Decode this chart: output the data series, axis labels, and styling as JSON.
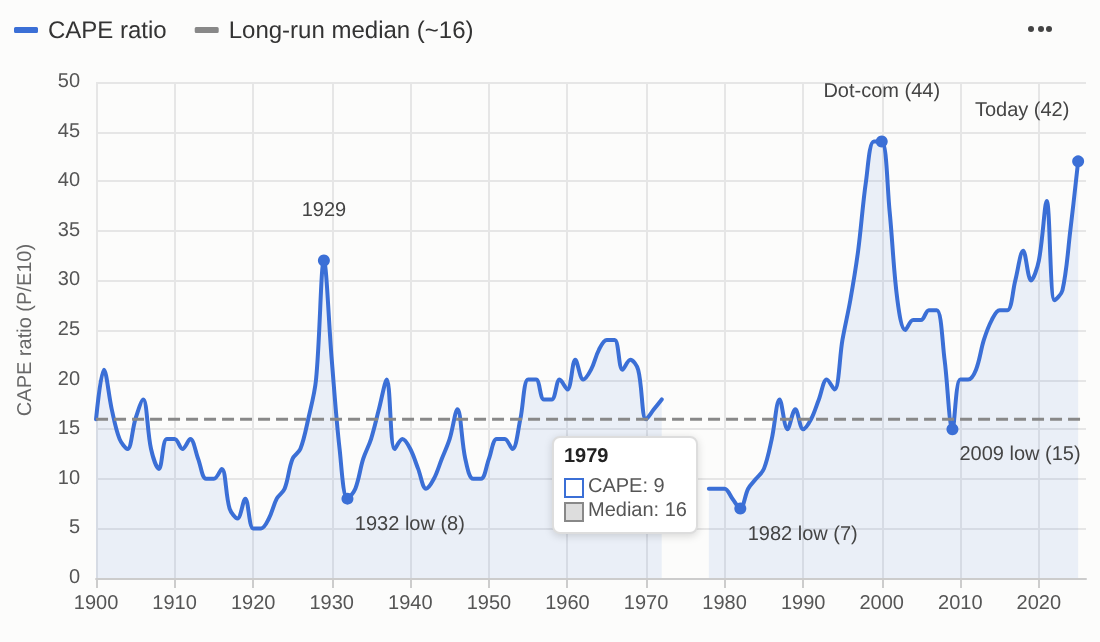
{
  "chart_data": {
    "type": "area",
    "ylabel": "CAPE ratio (P/E10)",
    "x": [
      1900,
      1901,
      1902,
      1903,
      1904,
      1905,
      1906,
      1907,
      1908,
      1909,
      1910,
      1911,
      1912,
      1913,
      1914,
      1915,
      1916,
      1917,
      1918,
      1919,
      1920,
      1921,
      1922,
      1923,
      1924,
      1925,
      1926,
      1927,
      1928,
      1929,
      1930,
      1931,
      1932,
      1933,
      1934,
      1935,
      1936,
      1937,
      1938,
      1939,
      1940,
      1941,
      1942,
      1943,
      1944,
      1945,
      1946,
      1947,
      1948,
      1949,
      1950,
      1951,
      1952,
      1953,
      1954,
      1955,
      1956,
      1957,
      1958,
      1959,
      1960,
      1961,
      1962,
      1963,
      1964,
      1965,
      1966,
      1967,
      1968,
      1969,
      1970,
      1971,
      1972,
      1973,
      1974,
      1975,
      1976,
      1977,
      1978,
      1979,
      1980,
      1981,
      1982,
      1983,
      1984,
      1985,
      1986,
      1987,
      1988,
      1989,
      1990,
      1991,
      1992,
      1993,
      1994,
      1995,
      1996,
      1997,
      1998,
      1999,
      2000,
      2001,
      2002,
      2003,
      2004,
      2005,
      2006,
      2007,
      2008,
      2009,
      2010,
      2011,
      2012,
      2013,
      2014,
      2015,
      2016,
      2017,
      2018,
      2019,
      2020,
      2021,
      2022,
      2023,
      2024,
      2025
    ],
    "series": [
      {
        "name": "CAPE ratio",
        "color": "#3b6fd6",
        "values": [
          16,
          21,
          17,
          14,
          13,
          16,
          18,
          13,
          11,
          14,
          14,
          13,
          14,
          12,
          10,
          10,
          11,
          7,
          6,
          8,
          5,
          5,
          6,
          8,
          9,
          12,
          13,
          16,
          20,
          32,
          22,
          13,
          8,
          9,
          12,
          14,
          17,
          20,
          13,
          14,
          13,
          11,
          9,
          10,
          12,
          14,
          17,
          12,
          10,
          10,
          12,
          14,
          14,
          13,
          16,
          20,
          20,
          18,
          18,
          20,
          19,
          22,
          20,
          21,
          23,
          24,
          24,
          21,
          22,
          21,
          16,
          17,
          18,
          null,
          null,
          null,
          null,
          null,
          9,
          9,
          9,
          8,
          7,
          9,
          10,
          11,
          14,
          18,
          15,
          17,
          15,
          16,
          18,
          20,
          19,
          24,
          28,
          33,
          40,
          44,
          44,
          37,
          28,
          25,
          26,
          26,
          27,
          27,
          22,
          15,
          20,
          20,
          21,
          24,
          26,
          27,
          27,
          30,
          33,
          30,
          32,
          38,
          28,
          29,
          35,
          42
        ]
      }
    ],
    "ref_lines": [
      {
        "axis": "y",
        "value": 16,
        "label": "Long-run median (~16)",
        "color": "#888888",
        "line_style": "dashed"
      }
    ],
    "annotations": [
      "1979",
      "CAPE: 9",
      "Median: 16",
      {
        "text": "1929",
        "x": 1929,
        "y": 32
      },
      {
        "text": "1932 low (8)",
        "x": 1932,
        "y": 8
      },
      {
        "text": "1982 low (7)",
        "x": 1982,
        "y": 7
      },
      {
        "text": "Dot-com (44)",
        "x": 2000,
        "y": 44
      },
      {
        "text": "2009 low (15)",
        "x": 2009,
        "y": 15
      },
      {
        "text": "Today (42)",
        "x": 2025,
        "y": 42
      }
    ],
    "xlim": [
      1900,
      2026
    ],
    "xticks": [
      1900,
      1910,
      1920,
      1930,
      1940,
      1950,
      1960,
      1970,
      1980,
      1990,
      2000,
      2010,
      2020
    ],
    "ylim": [
      0,
      50
    ],
    "yticks": [
      0,
      5,
      10,
      15,
      20,
      25,
      30,
      35,
      40,
      45,
      50
    ],
    "grid": true,
    "legend": "top left",
    "marker": "none",
    "line_style": "solid"
  }
}
